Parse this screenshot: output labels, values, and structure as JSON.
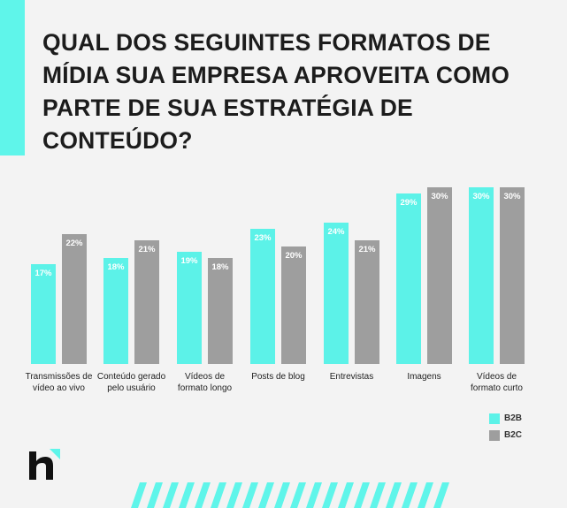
{
  "chart_data": {
    "type": "bar",
    "title": "QUAL DOS SEGUINTES FORMATOS DE MÍDIA SUA EMPRESA APROVEITA COMO PARTE DE SUA ESTRATÉGIA DE CONTEÚDO?",
    "categories": [
      "Transmissões de vídeo ao vivo",
      "Conteúdo gerado pelo usuário",
      "Vídeos de formato longo",
      "Posts de blog",
      "Entrevistas",
      "Imagens",
      "Vídeos de formato curto"
    ],
    "series": [
      {
        "name": "B2B",
        "color": "#5cf2e8",
        "values": [
          17,
          18,
          19,
          23,
          24,
          29,
          30
        ],
        "value_labels": [
          "17%",
          "18%",
          "19%",
          "23%",
          "24%",
          "29%",
          "30%"
        ]
      },
      {
        "name": "B2C",
        "color": "#9e9e9e",
        "values": [
          22,
          21,
          18,
          20,
          21,
          30,
          30
        ],
        "value_labels": [
          "22%",
          "21%",
          "18%",
          "20%",
          "21%",
          "30%",
          "30%"
        ]
      }
    ]
  }
}
